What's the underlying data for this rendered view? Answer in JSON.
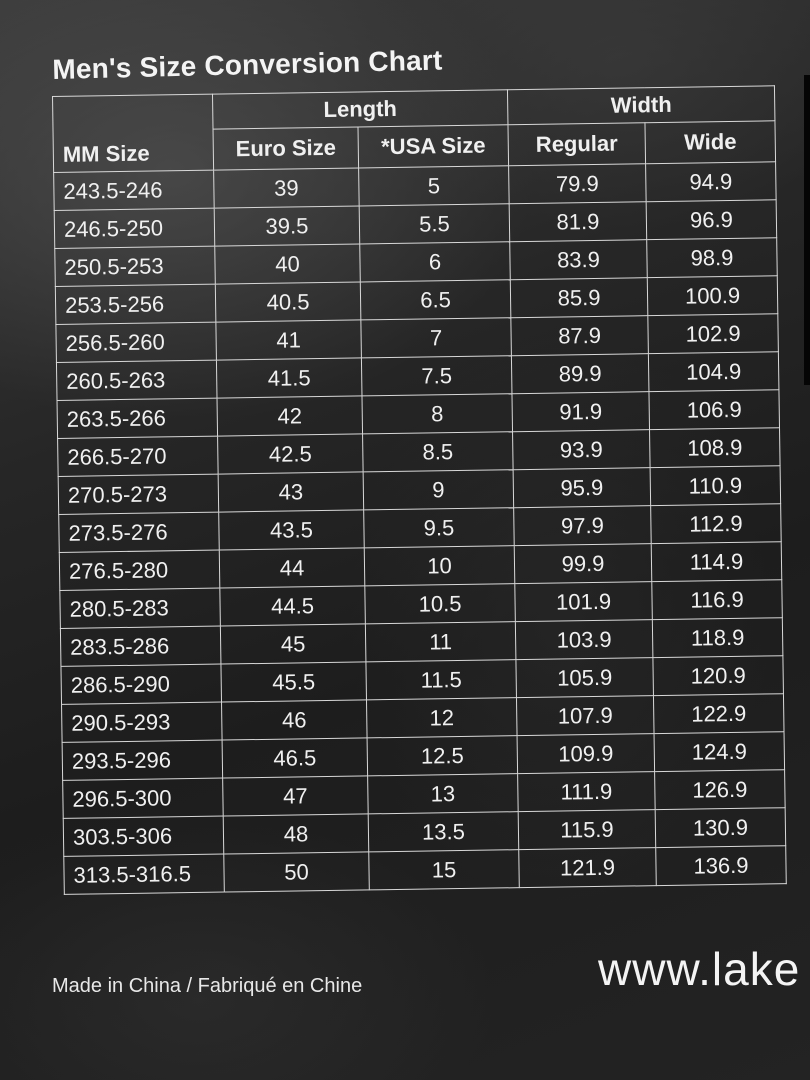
{
  "title": "Men's Size Conversion Chart",
  "header": {
    "group_length": "Length",
    "group_width": "Width",
    "columns": [
      "MM Size",
      "Euro Size",
      "*USA  Size",
      "Regular",
      "Wide"
    ]
  },
  "rows": [
    [
      "243.5-246",
      "39",
      "5",
      "79.9",
      "94.9"
    ],
    [
      "246.5-250",
      "39.5",
      "5.5",
      "81.9",
      "96.9"
    ],
    [
      "250.5-253",
      "40",
      "6",
      "83.9",
      "98.9"
    ],
    [
      "253.5-256",
      "40.5",
      "6.5",
      "85.9",
      "100.9"
    ],
    [
      "256.5-260",
      "41",
      "7",
      "87.9",
      "102.9"
    ],
    [
      "260.5-263",
      "41.5",
      "7.5",
      "89.9",
      "104.9"
    ],
    [
      "263.5-266",
      "42",
      "8",
      "91.9",
      "106.9"
    ],
    [
      "266.5-270",
      "42.5",
      "8.5",
      "93.9",
      "108.9"
    ],
    [
      "270.5-273",
      "43",
      "9",
      "95.9",
      "110.9"
    ],
    [
      "273.5-276",
      "43.5",
      "9.5",
      "97.9",
      "112.9"
    ],
    [
      "276.5-280",
      "44",
      "10",
      "99.9",
      "114.9"
    ],
    [
      "280.5-283",
      "44.5",
      "10.5",
      "101.9",
      "116.9"
    ],
    [
      "283.5-286",
      "45",
      "11",
      "103.9",
      "118.9"
    ],
    [
      "286.5-290",
      "45.5",
      "11.5",
      "105.9",
      "120.9"
    ],
    [
      "290.5-293",
      "46",
      "12",
      "107.9",
      "122.9"
    ],
    [
      "293.5-296",
      "46.5",
      "12.5",
      "109.9",
      "124.9"
    ],
    [
      "296.5-300",
      "47",
      "13",
      "111.9",
      "126.9"
    ],
    [
      "303.5-306",
      "48",
      "13.5",
      "115.9",
      "130.9"
    ],
    [
      "313.5-316.5",
      "50",
      "15",
      "121.9",
      "136.9"
    ]
  ],
  "footer": {
    "made_in": "Made in China / Fabriqué en Chine",
    "url_partial": "www.lake"
  }
}
